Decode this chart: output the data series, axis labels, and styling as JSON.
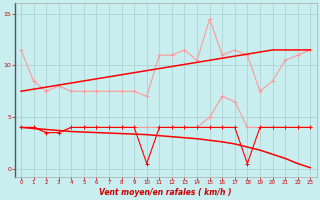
{
  "x": [
    0,
    1,
    2,
    3,
    4,
    5,
    6,
    7,
    8,
    9,
    10,
    11,
    12,
    13,
    14,
    15,
    16,
    17,
    18,
    19,
    20,
    21,
    22,
    23
  ],
  "line_gust": [
    11.5,
    8.5,
    7.5,
    8.0,
    7.5,
    7.5,
    7.5,
    7.5,
    7.5,
    7.5,
    7.0,
    11.0,
    11.0,
    11.5,
    10.5,
    14.5,
    11.0,
    11.5,
    11.0,
    7.5,
    8.5,
    10.5,
    11.0,
    11.5
  ],
  "line_avg": [
    4.0,
    4.0,
    3.5,
    3.5,
    4.0,
    4.0,
    4.0,
    4.0,
    4.0,
    4.0,
    4.0,
    4.0,
    4.0,
    4.0,
    4.0,
    5.0,
    7.0,
    6.5,
    4.0,
    4.0,
    4.0,
    4.0,
    4.0,
    4.0
  ],
  "line_trend_gust": [
    7.5,
    7.7,
    7.9,
    8.1,
    8.3,
    8.5,
    8.7,
    8.9,
    9.1,
    9.3,
    9.5,
    9.7,
    9.9,
    10.1,
    10.3,
    10.5,
    10.7,
    10.9,
    11.1,
    11.3,
    11.5,
    11.5,
    11.5,
    11.5
  ],
  "line_trend_avg": [
    4.0,
    3.9,
    3.8,
    3.7,
    3.6,
    3.55,
    3.5,
    3.45,
    3.4,
    3.35,
    3.3,
    3.2,
    3.1,
    3.0,
    2.9,
    2.75,
    2.6,
    2.4,
    2.1,
    1.8,
    1.4,
    1.0,
    0.5,
    0.1
  ],
  "line_min_avg": [
    4.0,
    4.0,
    3.5,
    3.5,
    4.0,
    4.0,
    4.0,
    4.0,
    4.0,
    4.0,
    0.5,
    4.0,
    4.0,
    4.0,
    4.0,
    4.0,
    4.0,
    4.0,
    0.5,
    4.0,
    4.0,
    4.0,
    4.0,
    4.0
  ],
  "color_light": "#ff9999",
  "color_dark": "#ff0000",
  "bgcolor": "#c8eef0",
  "grid_color": "#aacccc",
  "xlabel": "Vent moyen/en rafales ( km/h )",
  "ylim": [
    -0.8,
    16.0
  ],
  "xlim": [
    -0.5,
    23.5
  ],
  "yticks": [
    0,
    5,
    10,
    15
  ],
  "xticks": [
    0,
    1,
    2,
    3,
    4,
    5,
    6,
    7,
    8,
    9,
    10,
    11,
    12,
    13,
    14,
    15,
    16,
    17,
    18,
    19,
    20,
    21,
    22,
    23
  ]
}
